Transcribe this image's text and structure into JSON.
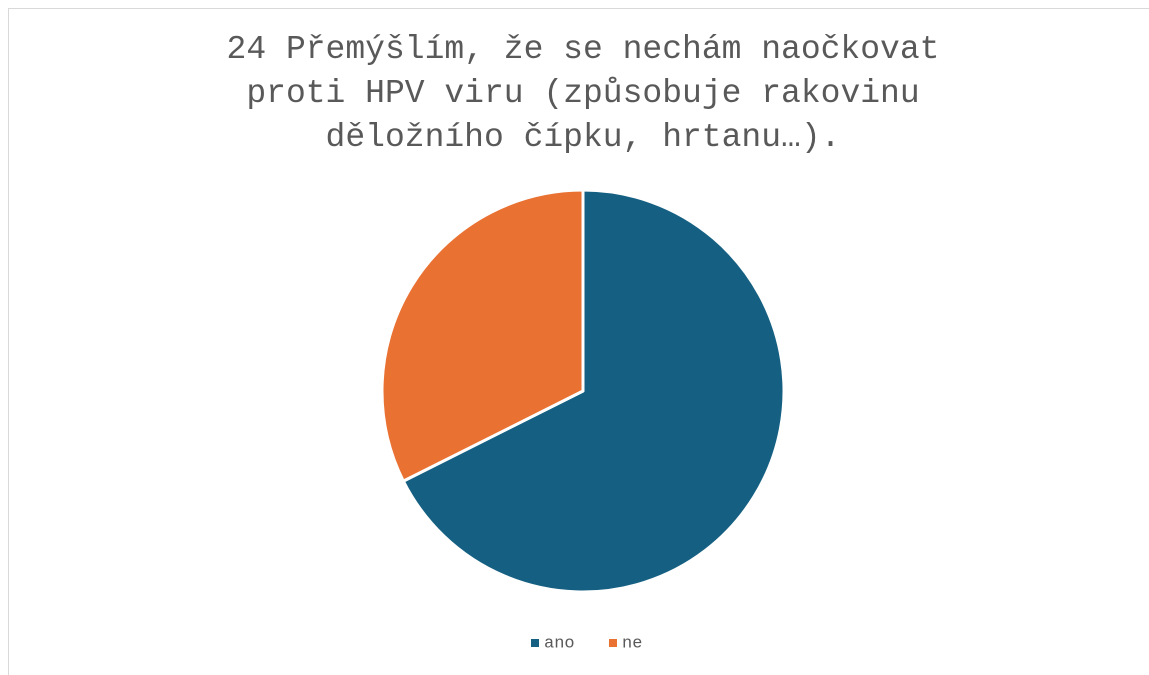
{
  "chart_data": {
    "type": "pie",
    "title": "24 Přemýšlím, že se nechám naočkovat proti HPV viru (způsobuje rakovinu děložního čípku, hrtanu…).",
    "categories": [
      "ano",
      "ne"
    ],
    "values": [
      67.6,
      32.4
    ],
    "colors": [
      "#156082",
      "#e97132"
    ],
    "legend": "bottom"
  }
}
